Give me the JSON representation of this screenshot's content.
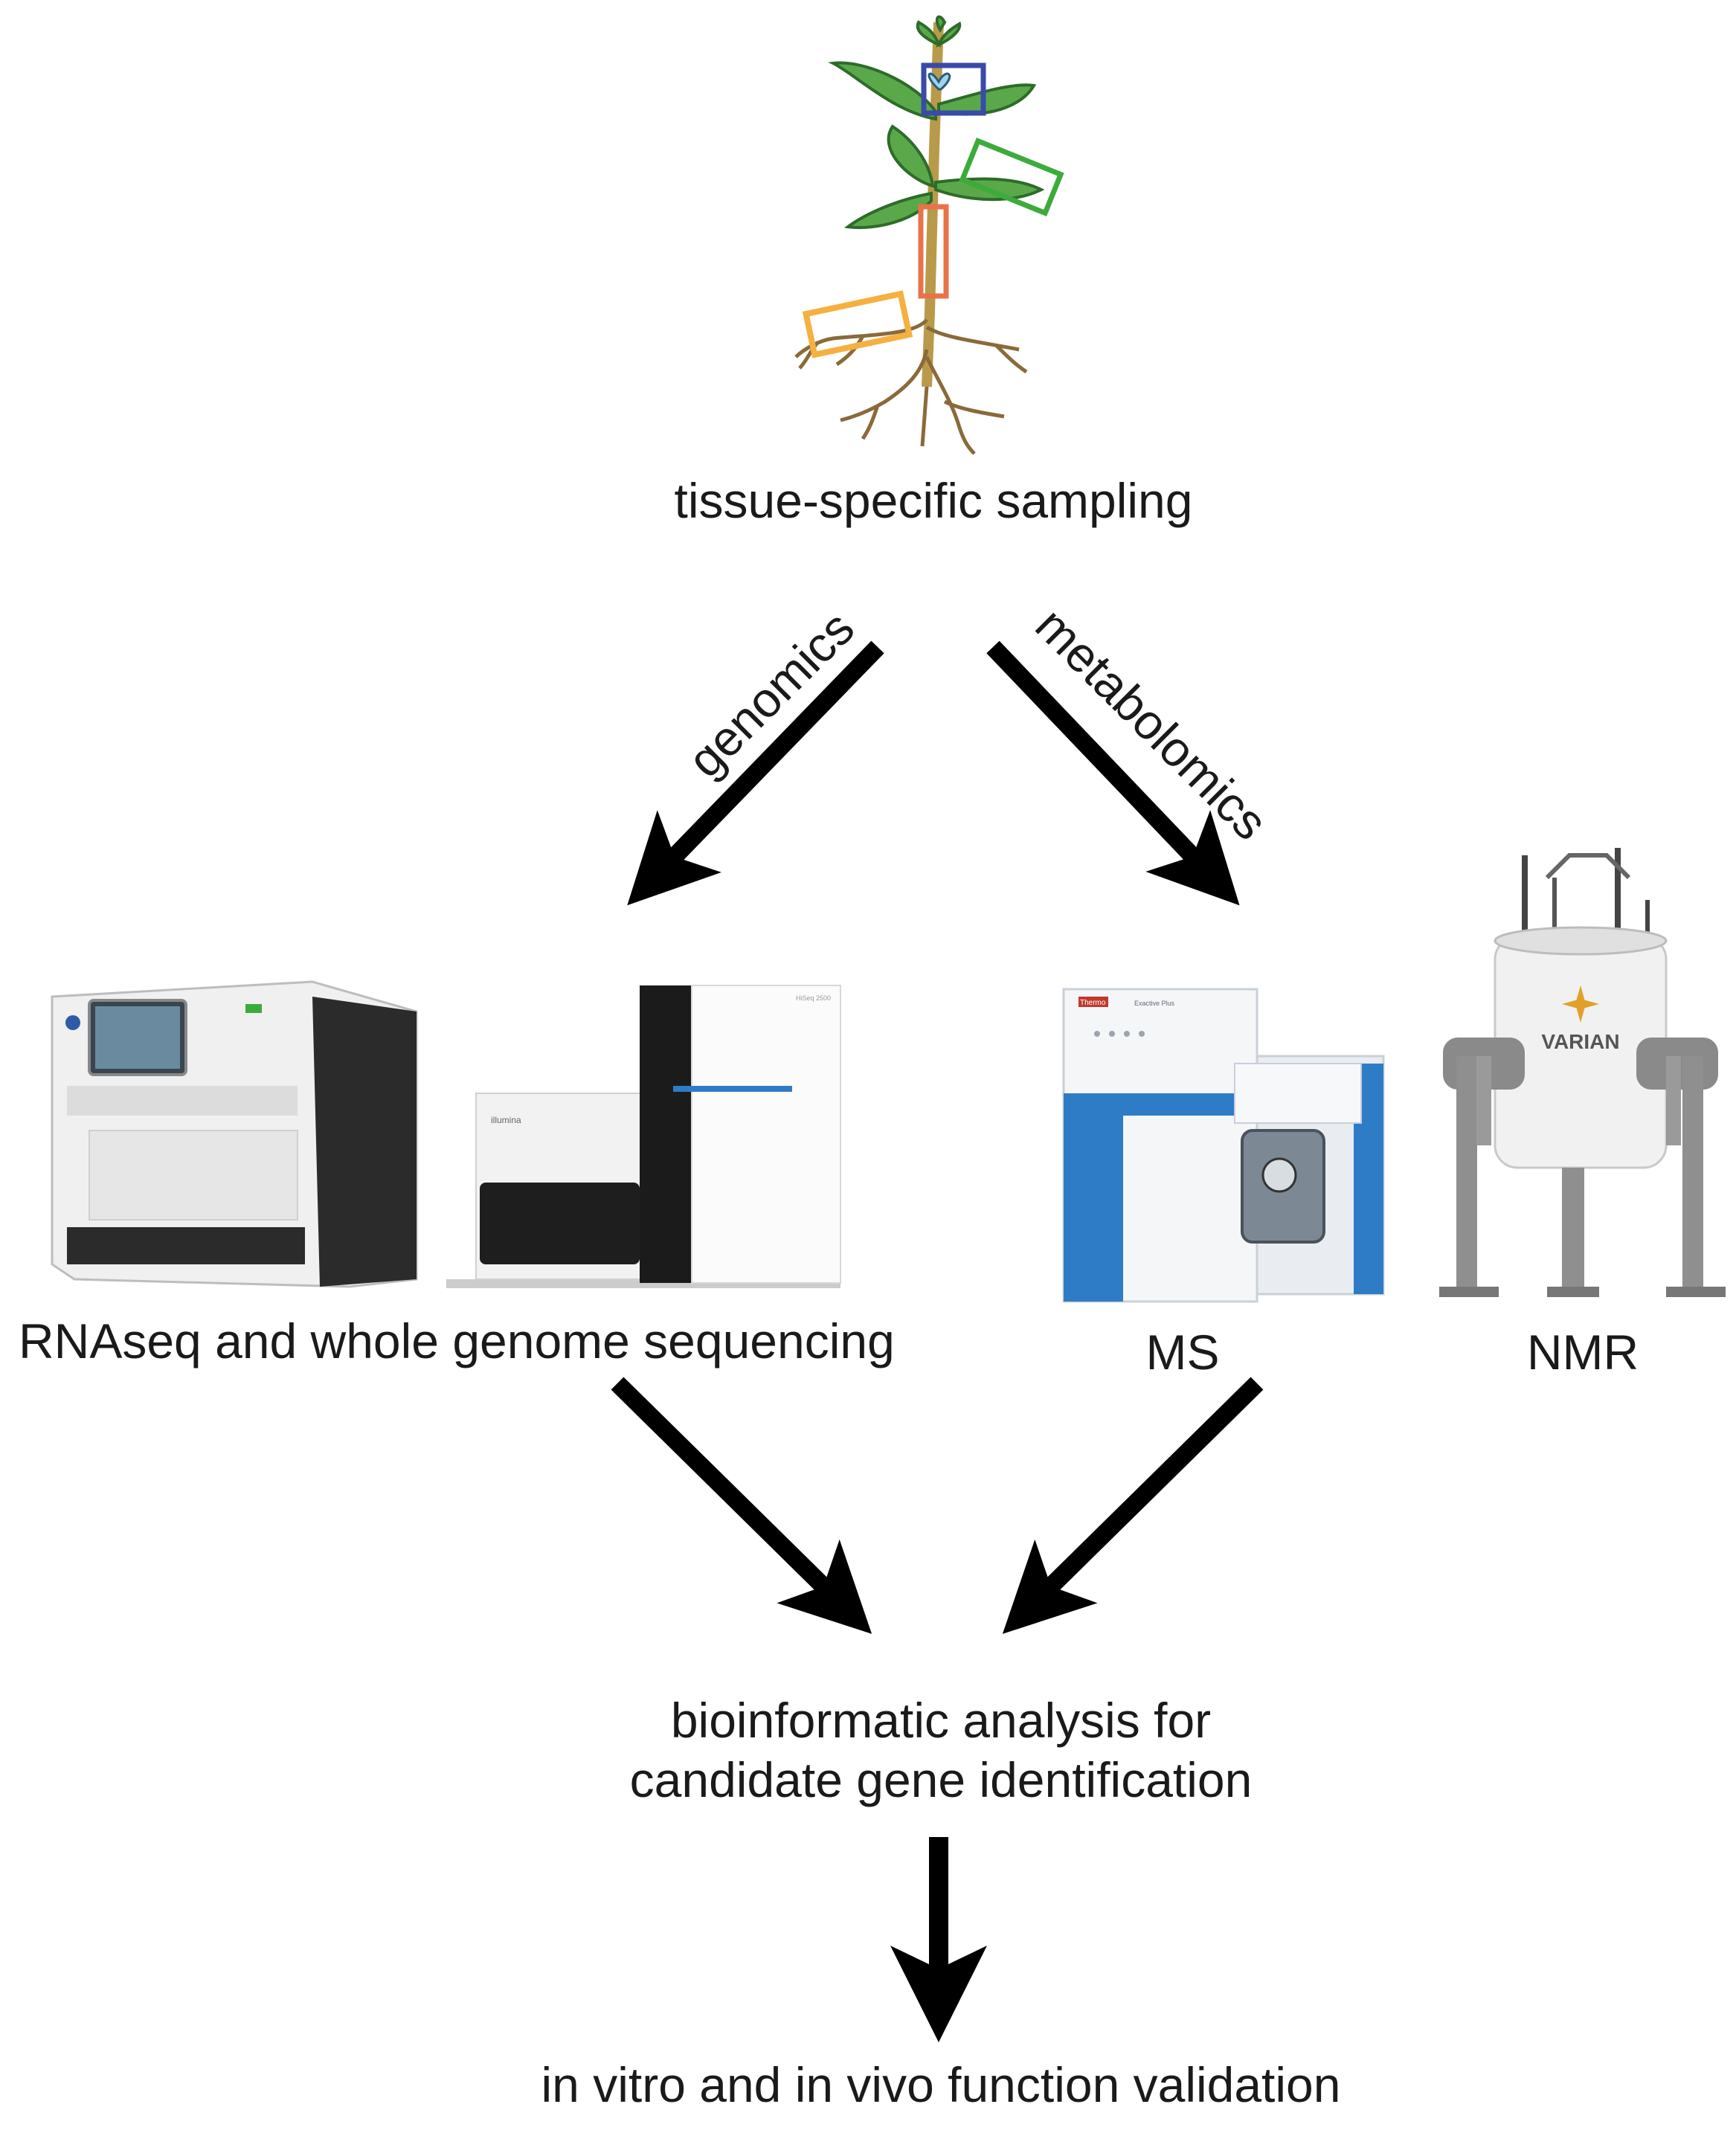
{
  "labels": {
    "sampling": "tissue-specific sampling",
    "genomics": "genomics",
    "metabolomics": "metabolomics",
    "sequencing": "RNAseq and whole genome sequencing",
    "ms": "MS",
    "nmr": "NMR",
    "bioinformatics_line1": "bioinformatic analysis for",
    "bioinformatics_line2": "candidate gene identification",
    "validation": "in vitro and in vivo function validation"
  },
  "instrument_branding": {
    "sequencer_right": "illumina",
    "sequencer_right_model": "HiSeq 2500",
    "ms_brand": "Thermo",
    "ms_model": "Exactive Plus",
    "nmr_brand": "VARIAN"
  },
  "colors": {
    "arrow": "#000000",
    "box_flower": "#3a4aa8",
    "box_leaf": "#3cab3c",
    "box_stem": "#e8734a",
    "box_root": "#f5b041",
    "leaf": "#5aa84a",
    "stem": "#b89a4a",
    "ms_blue": "#2f7cc6"
  },
  "icons": [
    "plant-illustration",
    "sequencer-pacbio",
    "sequencer-illumina",
    "mass-spectrometer",
    "nmr-magnet"
  ]
}
